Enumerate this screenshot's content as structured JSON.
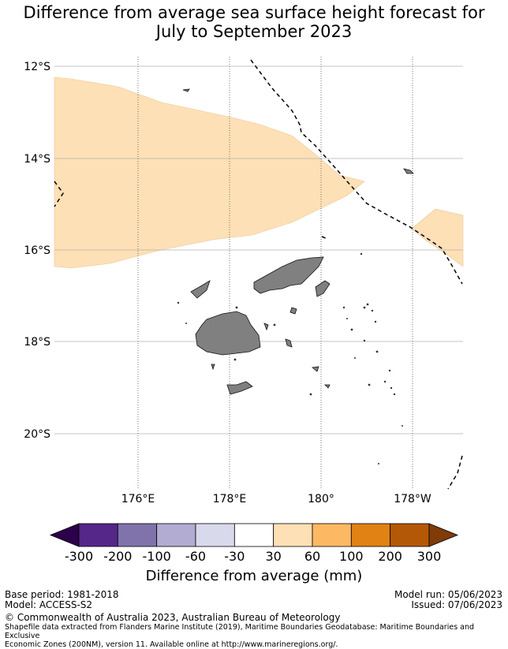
{
  "title_line1": "Difference from average sea surface height forecast for",
  "title_line2": "July to September 2023",
  "lat_labels": [
    "12°S",
    "14°S",
    "16°S",
    "18°S",
    "20°S"
  ],
  "lon_labels": [
    "176°E",
    "178°E",
    "180°",
    "178°W"
  ],
  "colorbar": {
    "ticks": [
      "-300",
      "-200",
      "-100",
      "-60",
      "-30",
      "30",
      "60",
      "100",
      "200",
      "300"
    ],
    "colors": [
      "#2d004b",
      "#542788",
      "#8073ac",
      "#b2abd2",
      "#d8daeb",
      "#ffffff",
      "#fee0b6",
      "#fdb863",
      "#e08214",
      "#b35806",
      "#7f3b08"
    ],
    "label": "Difference from average (mm)"
  },
  "footer": {
    "base_period": "Base period: 1981-2018",
    "model": "Model: ACCESS-S2",
    "model_run": "Model run: 05/06/2023",
    "issued": "Issued: 07/06/2023",
    "copyright": "© Commonwealth of Australia 2023, Australian Bureau of Meteorology",
    "shapefile_line1": "Shapefile data extracted from Flanders Marine Institute (2019), Maritime Boundaries Geodatabase: Maritime Boundaries and Exclusive",
    "shapefile_line2": "Economic Zones (200NM), version 11. Available online at http://www.marineregions.org/."
  },
  "colors": {
    "positive_30_60": "#fee0b6",
    "land": "#808080"
  }
}
